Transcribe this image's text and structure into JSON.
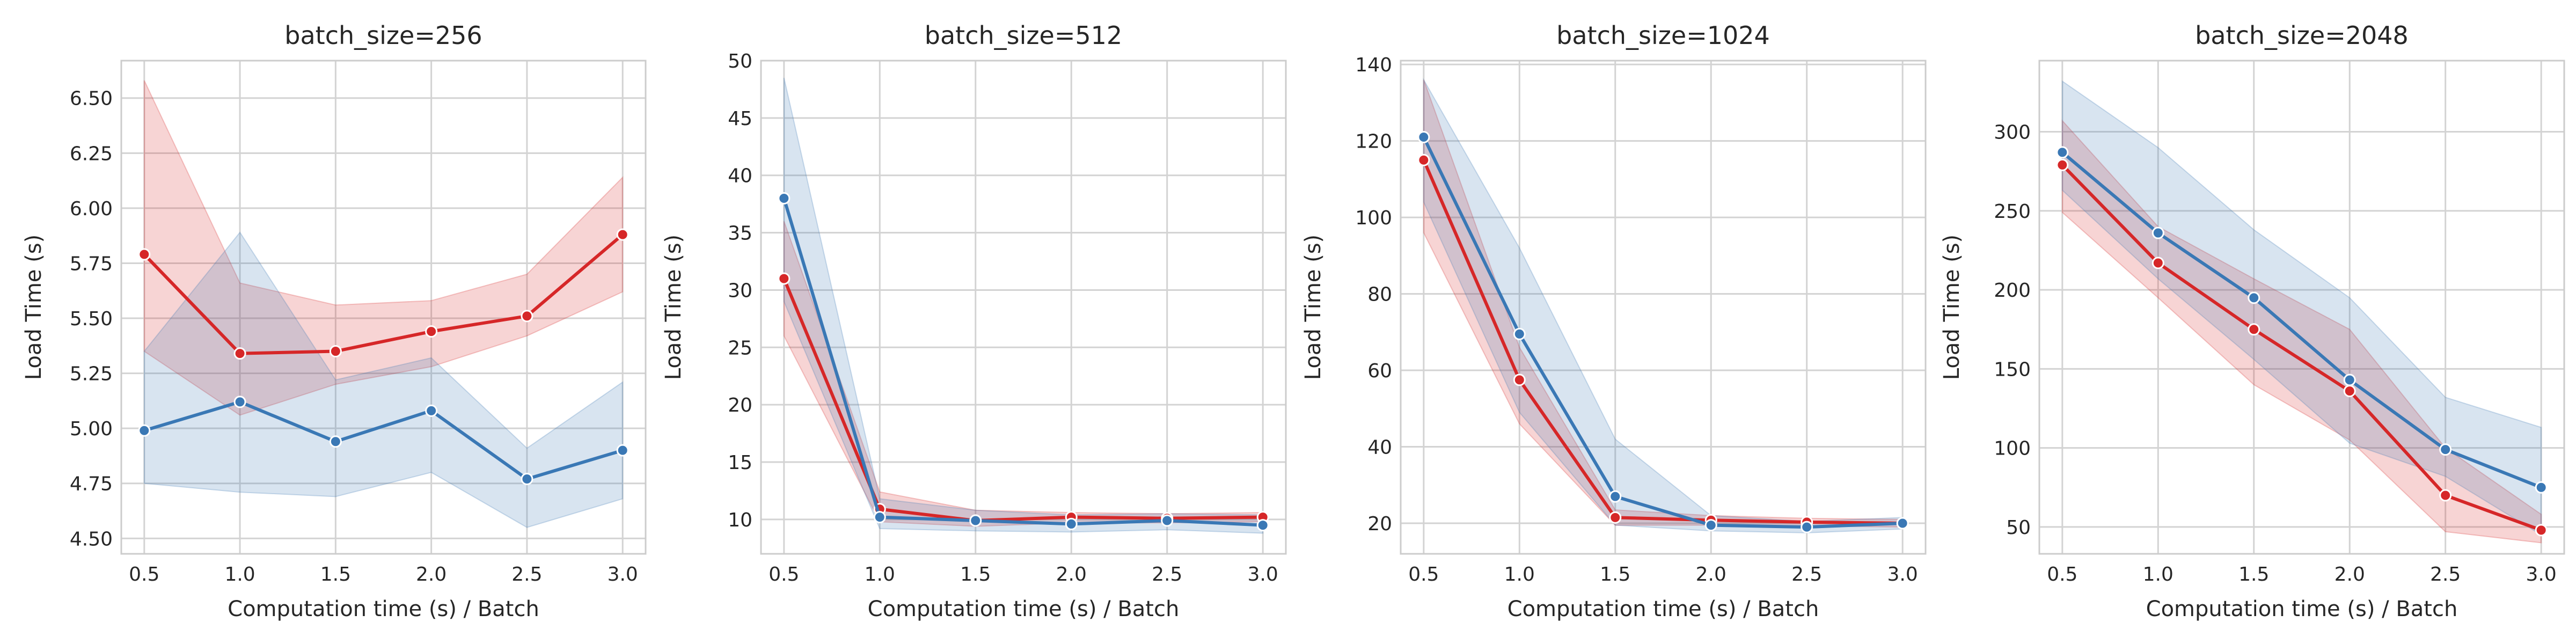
{
  "chart_data": [
    {
      "type": "line",
      "title": "batch_size=256",
      "xlabel": "Computation time (s) / Batch",
      "ylabel": "Load Time (s)",
      "x": [
        0.5,
        1.0,
        1.5,
        2.0,
        2.5,
        3.0
      ],
      "xticks": [
        "0.5",
        "1.0",
        "1.5",
        "2.0",
        "2.5",
        "3.0"
      ],
      "xlim": [
        0.38,
        3.12
      ],
      "ylim": [
        4.43,
        6.67
      ],
      "yticks": [
        "4.50",
        "4.75",
        "5.00",
        "5.25",
        "5.50",
        "5.75",
        "6.00",
        "6.25",
        "6.50"
      ],
      "grid": true,
      "series": [
        {
          "color": "#d62728",
          "values": [
            5.79,
            5.34,
            5.35,
            5.44,
            5.51,
            5.88
          ],
          "band_low": [
            5.35,
            5.06,
            5.2,
            5.28,
            5.42,
            5.62
          ],
          "band_high": [
            6.58,
            5.66,
            5.56,
            5.58,
            5.7,
            6.14
          ]
        },
        {
          "color": "#3a78b5",
          "values": [
            4.99,
            5.12,
            4.94,
            5.08,
            4.77,
            4.9
          ],
          "band_low": [
            4.75,
            4.71,
            4.69,
            4.8,
            4.55,
            4.68
          ],
          "band_high": [
            5.35,
            5.89,
            5.22,
            5.32,
            4.91,
            5.21
          ]
        }
      ]
    },
    {
      "type": "line",
      "title": "batch_size=512",
      "xlabel": "Computation time (s) / Batch",
      "ylabel": "Load Time (s)",
      "x": [
        0.5,
        1.0,
        1.5,
        2.0,
        2.5,
        3.0
      ],
      "xticks": [
        "0.5",
        "1.0",
        "1.5",
        "2.0",
        "2.5",
        "3.0"
      ],
      "xlim": [
        0.38,
        3.12
      ],
      "ylim": [
        7.0,
        50.0
      ],
      "yticks": [
        "10",
        "15",
        "20",
        "25",
        "30",
        "35",
        "40",
        "45",
        "50"
      ],
      "grid": true,
      "series": [
        {
          "color": "#d62728",
          "values": [
            31.0,
            10.9,
            9.9,
            10.2,
            10.1,
            10.2
          ],
          "band_low": [
            26.0,
            9.8,
            9.4,
            9.7,
            9.7,
            9.8
          ],
          "band_high": [
            36.0,
            12.4,
            10.8,
            10.6,
            10.5,
            10.6
          ]
        },
        {
          "color": "#3a78b5",
          "values": [
            38.0,
            10.2,
            9.9,
            9.6,
            9.9,
            9.5
          ],
          "band_low": [
            29.0,
            9.2,
            9.0,
            8.9,
            9.1,
            8.8
          ],
          "band_high": [
            48.5,
            11.8,
            10.8,
            10.4,
            10.5,
            10.4
          ]
        }
      ]
    },
    {
      "type": "line",
      "title": "batch_size=1024",
      "xlabel": "Computation time (s) / Batch",
      "ylabel": "Load Time (s)",
      "x": [
        0.5,
        1.0,
        1.5,
        2.0,
        2.5,
        3.0
      ],
      "xticks": [
        "0.5",
        "1.0",
        "1.5",
        "2.0",
        "2.5",
        "3.0"
      ],
      "xlim": [
        0.38,
        3.12
      ],
      "ylim": [
        12.0,
        141.0
      ],
      "yticks": [
        "20",
        "40",
        "60",
        "80",
        "100",
        "120",
        "140"
      ],
      "grid": true,
      "series": [
        {
          "color": "#d62728",
          "values": [
            115.0,
            57.5,
            21.5,
            20.8,
            20.3,
            20.0
          ],
          "band_low": [
            96.0,
            46.0,
            19.5,
            19.5,
            19.3,
            19.0
          ],
          "band_high": [
            136.0,
            66.0,
            23.5,
            22.0,
            21.3,
            21.0
          ]
        },
        {
          "color": "#3a78b5",
          "values": [
            121.0,
            69.5,
            27.0,
            19.5,
            19.0,
            20.0
          ],
          "band_low": [
            104.0,
            49.0,
            19.5,
            18.0,
            17.5,
            18.5
          ],
          "band_high": [
            136.0,
            92.0,
            42.0,
            22.0,
            20.5,
            21.5
          ]
        }
      ]
    },
    {
      "type": "line",
      "title": "batch_size=2048",
      "xlabel": "Computation time (s) / Batch",
      "ylabel": "Load Time (s)",
      "x": [
        0.5,
        1.0,
        1.5,
        2.0,
        2.5,
        3.0
      ],
      "xticks": [
        "0.5",
        "1.0",
        "1.5",
        "2.0",
        "2.5",
        "3.0"
      ],
      "xlim": [
        0.38,
        3.12
      ],
      "ylim": [
        33.0,
        345.0
      ],
      "yticks": [
        "50",
        "100",
        "150",
        "200",
        "250",
        "300"
      ],
      "grid": true,
      "series": [
        {
          "color": "#d62728",
          "values": [
            279.0,
            217.0,
            175.0,
            136.0,
            70.0,
            48.0
          ],
          "band_low": [
            249.0,
            195.0,
            140.0,
            105.0,
            47.0,
            40.0
          ],
          "band_high": [
            307.0,
            240.0,
            207.0,
            175.0,
            100.0,
            58.0
          ]
        },
        {
          "color": "#3a78b5",
          "values": [
            287.0,
            236.0,
            195.0,
            143.0,
            99.0,
            75.0
          ],
          "band_low": [
            263.0,
            207.0,
            156.0,
            103.0,
            82.0,
            45.0
          ],
          "band_high": [
            332.0,
            290.0,
            238.0,
            195.0,
            132.0,
            113.0
          ]
        }
      ]
    }
  ]
}
